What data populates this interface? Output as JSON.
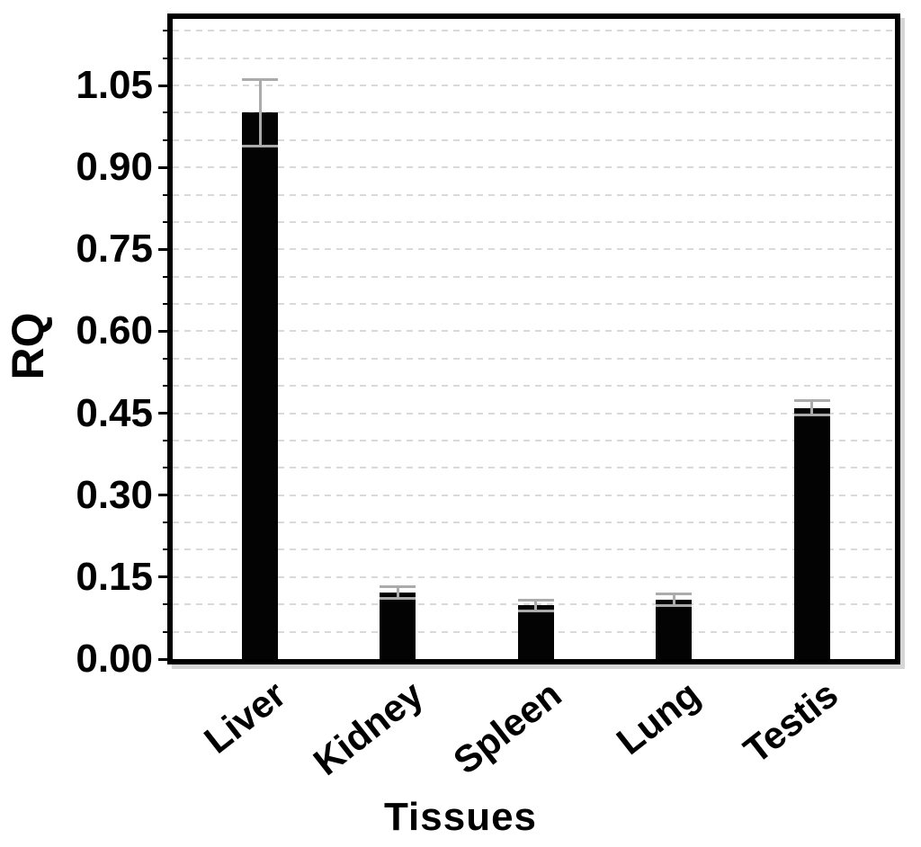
{
  "chart_data": {
    "type": "bar",
    "title": "",
    "xlabel": "Tissues",
    "ylabel": "RQ",
    "categories": [
      "Liver",
      "Kidney",
      "Spleen",
      "Lung",
      "Testis"
    ],
    "values": [
      1.0,
      0.122,
      0.098,
      0.108,
      0.46
    ],
    "errors": [
      0.063,
      0.013,
      0.012,
      0.013,
      0.016
    ],
    "yticklabels": [
      "0.00",
      "0.15",
      "0.30",
      "0.45",
      "0.60",
      "0.75",
      "0.90",
      "1.05"
    ],
    "ytick_major_interval": 0.15,
    "ytick_minor_interval": 0.05,
    "ylim": [
      0,
      1.17
    ],
    "grid": "horizontal dashed every 0.05",
    "legend": "none",
    "bar_color": "#000000",
    "error_bar_color": "#ababab",
    "gridline_color": "#d9d9d9",
    "plot_border_color": "#000000"
  }
}
